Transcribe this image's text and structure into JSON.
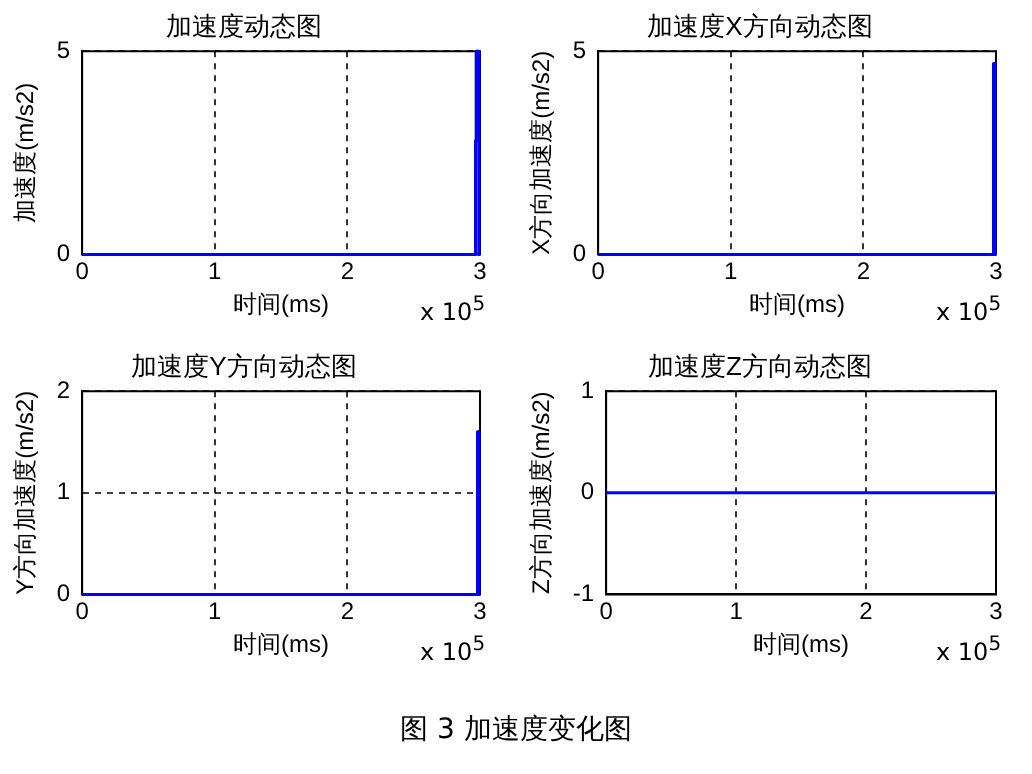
{
  "chart_data": [
    {
      "type": "line",
      "title": "加速度动态图",
      "xlabel": "时间(ms)",
      "ylabel": "加速度(m/s2)",
      "annotations": [
        "x 10$^{5}$",
        "图 3 加速度变化图"
      ],
      "series": [
        {
          "color": "#0000ff",
          "x": [
            0,
            2.965,
            2.966,
            2.97,
            2.971,
            2.99,
            2.991,
            3
          ],
          "values": [
            0,
            0,
            2.8,
            2.8,
            5,
            5,
            0,
            0
          ]
        }
      ],
      "xlim": [
        0,
        3
      ],
      "xticks": [
        0,
        1,
        2,
        3
      ],
      "ylim": [
        0,
        5
      ],
      "yticks": [
        0,
        5
      ],
      "grid": true,
      "line_style": "solid"
    },
    {
      "type": "line",
      "title": "加速度X方向动态图",
      "xlabel": "时间(ms)",
      "ylabel": "X方向加速度(m/s2)",
      "annotations": [
        "x 10$^{5}$"
      ],
      "series": [
        {
          "color": "#0000ff",
          "x": [
            0,
            2.98,
            2.981,
            2.99,
            2.991,
            3
          ],
          "values": [
            0,
            0,
            4.7,
            4.7,
            0,
            0
          ]
        }
      ],
      "xlim": [
        0,
        3
      ],
      "xticks": [
        0,
        1,
        2,
        3
      ],
      "ylim": [
        0,
        5
      ],
      "yticks": [
        0,
        5
      ],
      "grid": true,
      "line_style": "solid"
    },
    {
      "type": "line",
      "title": "加速度Y方向动态图",
      "xlabel": "时间(ms)",
      "ylabel": "Y方向加速度(m/s2)",
      "annotations": [
        "x 10$^{5}$"
      ],
      "series": [
        {
          "color": "#0000ff",
          "x": [
            0,
            2.98,
            2.981,
            2.99,
            2.991,
            3
          ],
          "values": [
            0,
            0,
            1.6,
            1.6,
            0,
            0
          ]
        }
      ],
      "xlim": [
        0,
        3
      ],
      "xticks": [
        0,
        1,
        2,
        3
      ],
      "ylim": [
        0,
        2
      ],
      "yticks": [
        0,
        1,
        2
      ],
      "grid": true,
      "line_style": "solid"
    },
    {
      "type": "line",
      "title": "加速度Z方向动态图",
      "xlabel": "时间(ms)",
      "ylabel": "Z方向加速度(m/s2)",
      "annotations": [
        "x 10$^{5}$"
      ],
      "series": [
        {
          "color": "#0000ff",
          "x": [
            0,
            3
          ],
          "values": [
            0,
            0
          ]
        }
      ],
      "xlim": [
        0,
        3
      ],
      "xticks": [
        0,
        1,
        2,
        3
      ],
      "ylim": [
        -1,
        1
      ],
      "yticks": [
        -1,
        0,
        1
      ],
      "grid": true,
      "line_style": "solid"
    }
  ]
}
